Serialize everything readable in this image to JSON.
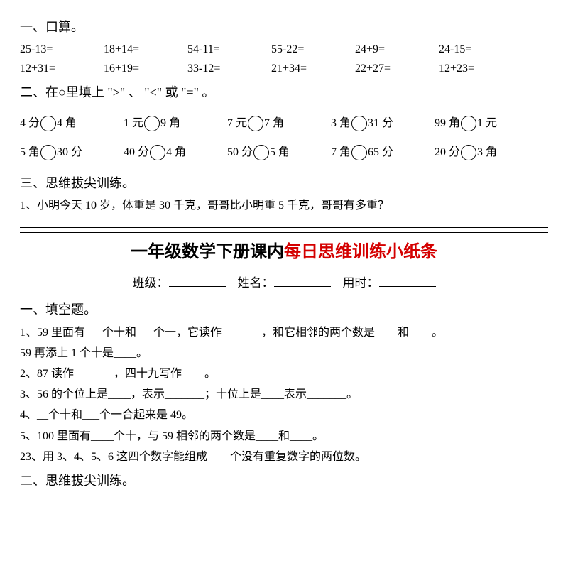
{
  "top": {
    "sec1_title": "一、口算。",
    "arith_rows": [
      [
        "25-13=",
        "18+14=",
        "54-11=",
        "55-22=",
        "24+9=",
        "24-15="
      ],
      [
        "12+31=",
        "16+19=",
        "33-12=",
        "21+34=",
        "22+27=",
        "12+23="
      ]
    ],
    "sec2_title": "二、在○里填上 \">\" 、 \"<\" 或 \"=\" 。",
    "comp_rows": [
      [
        {
          "l": "4 分",
          "r": "4 角"
        },
        {
          "l": "1 元",
          "r": "9 角"
        },
        {
          "l": "7 元",
          "r": "7 角"
        },
        {
          "l": "3 角",
          "r": "31 分"
        },
        {
          "l": "99 角",
          "r": "1 元"
        }
      ],
      [
        {
          "l": "5 角",
          "r": "30 分"
        },
        {
          "l": "40 分",
          "r": "4 角"
        },
        {
          "l": "50 分",
          "r": "5 角"
        },
        {
          "l": "7 角",
          "r": "65 分"
        },
        {
          "l": "20 分",
          "r": "3 角"
        }
      ]
    ],
    "sec3_title": "三、思维拔尖训练。",
    "word_problem": "1、小明今天 10 岁，体重是 30 千克，哥哥比小明重 5 千克，哥哥有多重？"
  },
  "bottom": {
    "title_black": "一年级数学下册课内",
    "title_red": "每日思维训练小纸条",
    "info": {
      "class_label": "班级：",
      "name_label": "姓名：",
      "time_label": "用时："
    },
    "sec1_title": "一、填空题。",
    "fills": [
      "1、59 里面有___个十和___个一，它读作_______，和它相邻的两个数是____和____。",
      "59 再添上 1 个十是____。",
      "2、87 读作_______，四十九写作____。",
      "3、56 的个位上是____，表示_______；十位上是____表示_______。",
      "4、__个十和___个一合起来是 49。",
      "5、100 里面有____个十，与 59 相邻的两个数是____和____。",
      "23、用 3、4、5、6 这四个数字能组成____个没有重复数字的两位数。"
    ],
    "sec2_title": "二、思维拔尖训练。"
  },
  "style": {
    "text_color": "#000000",
    "accent_color": "#d40000",
    "bg_color": "#ffffff",
    "base_fontsize": 16,
    "title_fontsize": 24,
    "circle_diameter": 22
  }
}
